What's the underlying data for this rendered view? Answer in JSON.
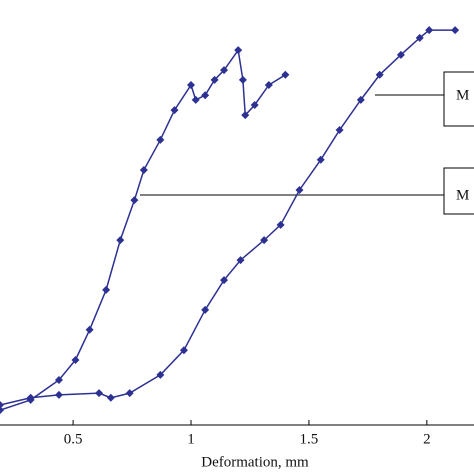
{
  "chart_data": {
    "type": "line",
    "x_label": "Deformation, mm",
    "xlim": [
      0.19,
      2.2
    ],
    "xticks": [
      0.5,
      1,
      1.5,
      2
    ],
    "ylim": [
      0,
      100
    ],
    "annotations": [
      "M",
      "M"
    ],
    "series": [
      {
        "color": "#2d3192",
        "x": [
          0.19,
          0.32,
          0.44,
          0.51,
          0.57,
          0.64,
          0.7,
          0.76,
          0.8,
          0.87,
          0.93,
          1.0,
          1.02,
          1.06,
          1.1,
          1.14,
          1.2,
          1.22,
          1.23,
          1.27,
          1.33,
          1.4
        ],
        "values": [
          3.5,
          5.9,
          10.6,
          15.3,
          22.4,
          31.8,
          43.5,
          52.9,
          60,
          67.1,
          74.1,
          80,
          76.5,
          77.6,
          81.2,
          83.5,
          88.2,
          81.2,
          72.9,
          75.3,
          80,
          82.4
        ]
      },
      {
        "color": "#2d3192",
        "x": [
          0.19,
          0.32,
          0.44,
          0.61,
          0.66,
          0.74,
          0.87,
          0.97,
          1.06,
          1.14,
          1.21,
          1.31,
          1.38,
          1.46,
          1.55,
          1.63,
          1.72,
          1.8,
          1.89,
          1.97,
          2.01,
          2.12
        ],
        "values": [
          4.7,
          6.4,
          7.1,
          7.5,
          6.4,
          7.5,
          11.8,
          17.6,
          27.1,
          34.1,
          38.8,
          43.5,
          47.1,
          55.3,
          62.4,
          69.4,
          76.5,
          82.4,
          87.1,
          91.1,
          92.9,
          92.9
        ]
      }
    ]
  }
}
